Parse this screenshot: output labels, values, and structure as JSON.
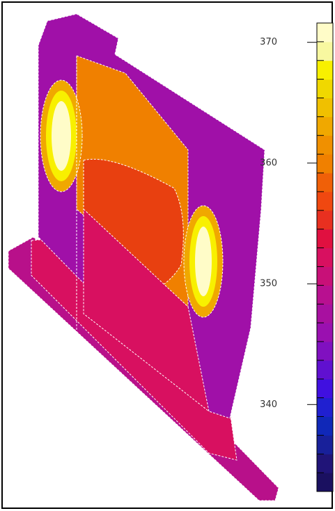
{
  "chart_data": {
    "type": "colorbar",
    "ylim": [
      332.8,
      371.6
    ],
    "yticks": [
      340,
      350,
      360,
      370
    ],
    "colors": [
      "#1a1060",
      "#201478",
      "#18209a",
      "#1028b8",
      "#2020d0",
      "#4010e0",
      "#6010d0",
      "#8010c0",
      "#9a10b0",
      "#a810a0",
      "#b81090",
      "#c81078",
      "#d81060",
      "#e01040",
      "#e83020",
      "#f04810",
      "#f06008",
      "#f08000",
      "#f09000",
      "#f0a800",
      "#f0c000",
      "#f0d800",
      "#f8f000",
      "#f8f8a0",
      "#fffcc8"
    ]
  }
}
